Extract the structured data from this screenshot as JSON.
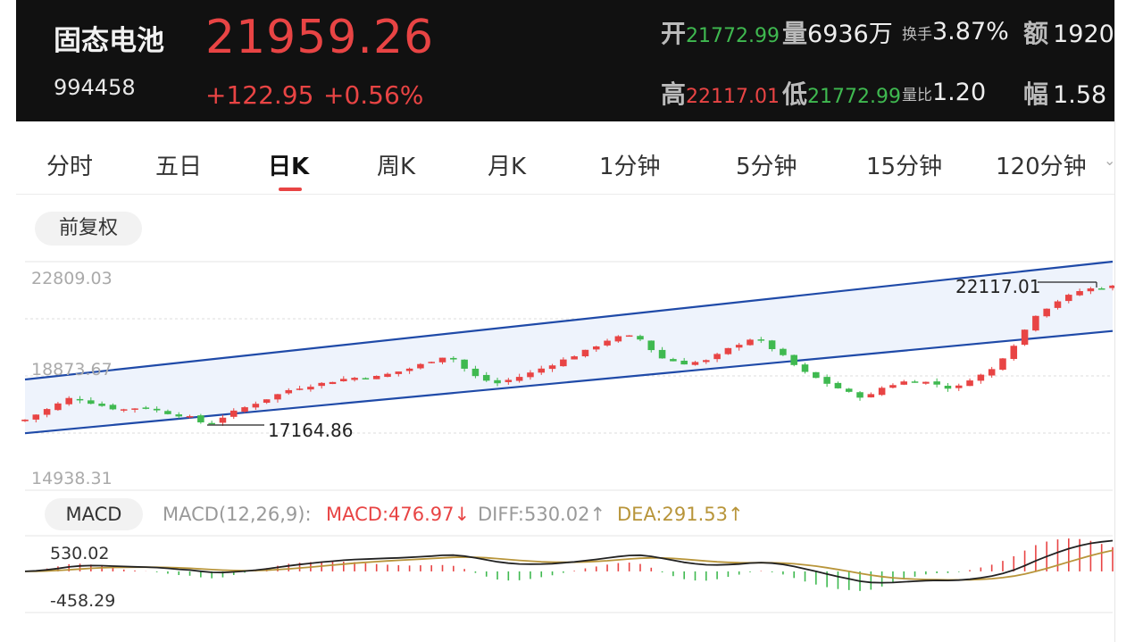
{
  "header": {
    "name": "固态电池",
    "code": "994458",
    "price": "21959.26",
    "change": "+122.95",
    "change_pct": "+0.56%",
    "stats": {
      "open_label": "开",
      "open_value": "21772.99",
      "volume_label": "量",
      "volume_value": "6936万",
      "turnover_label": "换手",
      "turnover_value": "3.87%",
      "amount_label": "额",
      "amount_value": "1920",
      "high_label": "高",
      "high_value": "22117.01",
      "low_label": "低",
      "low_value": "21772.99",
      "volume_ratio_label": "量比",
      "volume_ratio_value": "1.20",
      "amplitude_label": "幅",
      "amplitude_value": "1.58"
    }
  },
  "tabs": [
    "分时",
    "五日",
    "日K",
    "周K",
    "月K",
    "1分钟",
    "5分钟",
    "15分钟",
    "120分钟"
  ],
  "active_tab": "日K",
  "adjust_button": "前复权",
  "kline": {
    "y_high_label": "22809.03",
    "y_mid_label": "18873.67",
    "y_low_label": "14938.31",
    "max_marker": "22117.01",
    "min_marker": "17164.86"
  },
  "macd": {
    "button": "MACD",
    "params": "MACD(12,26,9):",
    "macd_text": "MACD:476.97↓",
    "diff_text": "DIFF:530.02↑",
    "dea_text": "DEA:291.53↑",
    "y_high_label": "530.02",
    "y_low_label": "-458.29"
  },
  "colors": {
    "up": "#e84444",
    "down": "#3fb950",
    "channel": "#1f4aa8",
    "channel_fill": "#eef3fc",
    "dea_line": "#b8953a",
    "header_bg": "#111111"
  },
  "chart_data": {
    "type": "candlestick",
    "count": 100,
    "ylim": [
      14938.31,
      22809.03
    ],
    "close_anchors": [
      [
        0,
        17370
      ],
      [
        4,
        17750
      ],
      [
        8,
        18150
      ],
      [
        12,
        17900
      ],
      [
        16,
        17700
      ],
      [
        20,
        17800
      ],
      [
        24,
        17600
      ],
      [
        28,
        17450
      ],
      [
        31,
        17180
      ],
      [
        35,
        17600
      ],
      [
        40,
        18000
      ],
      [
        45,
        18400
      ],
      [
        50,
        18600
      ],
      [
        55,
        18800
      ],
      [
        60,
        18850
      ],
      [
        65,
        19100
      ],
      [
        72,
        19600
      ],
      [
        76,
        18900
      ],
      [
        80,
        18600
      ],
      [
        85,
        18900
      ],
      [
        90,
        19300
      ],
      [
        95,
        19700
      ],
      [
        100,
        20200
      ],
      [
        104,
        20250
      ],
      [
        108,
        19500
      ],
      [
        112,
        19300
      ],
      [
        116,
        19400
      ],
      [
        120,
        19850
      ],
      [
        124,
        20200
      ],
      [
        128,
        19700
      ],
      [
        132,
        19050
      ],
      [
        136,
        18650
      ],
      [
        140,
        18300
      ],
      [
        143,
        18100
      ],
      [
        146,
        18500
      ],
      [
        150,
        18700
      ],
      [
        154,
        18650
      ],
      [
        158,
        18400
      ],
      [
        161,
        18800
      ],
      [
        164,
        19000
      ],
      [
        168,
        19900
      ],
      [
        172,
        21000
      ],
      [
        176,
        21500
      ],
      [
        180,
        21850
      ],
      [
        185,
        21959
      ]
    ],
    "channel_upper": [
      [
        0,
        18750
      ],
      [
        185,
        22809
      ]
    ],
    "channel_lower": [
      [
        0,
        16900
      ],
      [
        185,
        20420
      ]
    ],
    "macd_ylim": [
      -750,
      650
    ]
  }
}
